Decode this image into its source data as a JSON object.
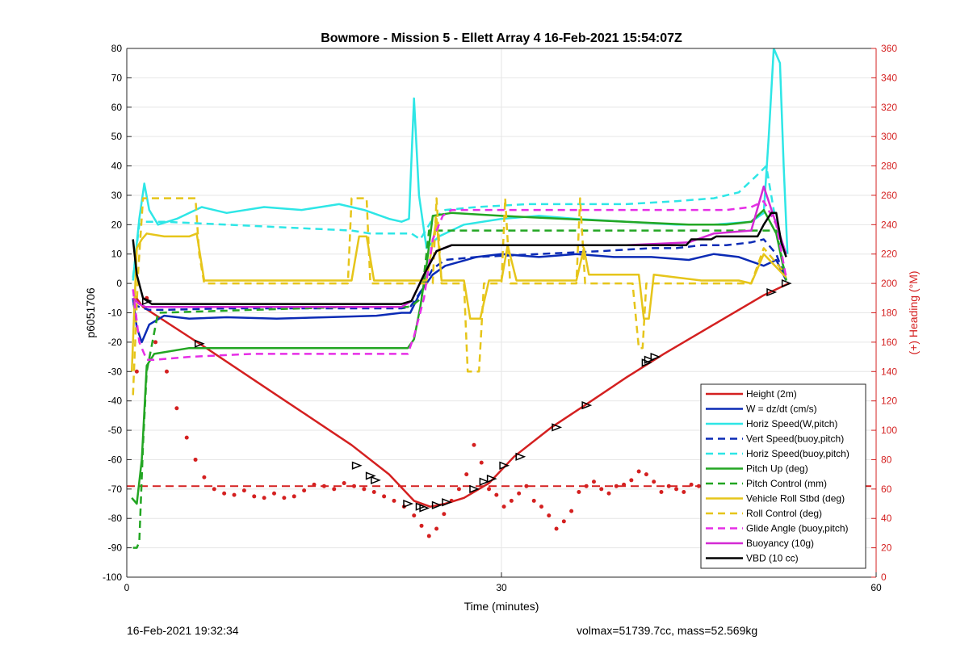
{
  "colors": {
    "height": "#d42020",
    "w": "#0b2bb5",
    "horiz_speed": "#2ee6e6",
    "pitch": "#23a623",
    "roll": "#e6c51a",
    "glide": "#e62ee6",
    "buoyancy": "#d42ad4",
    "vbd": "#000000",
    "right_axis": "#d42020"
  },
  "footer": {
    "left": "16-Feb-2021 19:32:34",
    "right": "volmax=51739.7cc, mass=52.569kg"
  },
  "chart_data": {
    "type": "line",
    "title": "Bowmore - Mission 5 - Ellett Array 4 16-Feb-2021 15:54:07Z",
    "xlabel": "Time (minutes)",
    "ylabel": "p6051706",
    "y2label": "(+) Heading (°M)",
    "xlim": [
      0,
      60
    ],
    "ylim": [
      -100,
      80
    ],
    "y2lim": [
      0,
      360
    ],
    "xticks": [
      0,
      30,
      60
    ],
    "yticks": [
      -100,
      -90,
      -80,
      -70,
      -60,
      -50,
      -40,
      -30,
      -20,
      -10,
      0,
      10,
      20,
      30,
      40,
      50,
      60,
      70,
      80
    ],
    "y2ticks": [
      0,
      20,
      40,
      60,
      80,
      100,
      120,
      140,
      160,
      180,
      200,
      220,
      240,
      260,
      280,
      300,
      320,
      340,
      360
    ],
    "grid": true,
    "legend_position": "bottom-right",
    "series": [
      {
        "name": "Height (2m)",
        "color": "#d42020",
        "style": "solid",
        "x": [
          0.6,
          1.3,
          6,
          12,
          18,
          21,
          23,
          24.3,
          25.5,
          27,
          29,
          31,
          34,
          36.5,
          40,
          43,
          47,
          51,
          53
        ],
        "y": [
          -4,
          -8,
          -21,
          -38,
          -55,
          -65,
          -74,
          -76,
          -75,
          -73,
          -68,
          -59,
          -49,
          -42,
          -32,
          -24,
          -14,
          -4,
          0
        ]
      },
      {
        "name": "W = dz/dt (cm/s)",
        "color": "#0b2bb5",
        "style": "solid",
        "x": [
          0.5,
          0.8,
          1.2,
          1.8,
          3,
          5,
          8,
          12,
          16,
          20,
          22,
          22.7,
          23.5,
          24.5,
          25.5,
          28,
          30,
          33,
          36,
          39,
          42,
          45,
          47,
          49,
          51,
          52,
          52.8
        ],
        "y": [
          -5,
          -15,
          -20,
          -14,
          -11,
          -12,
          -11.5,
          -12,
          -11.5,
          -11,
          -10,
          -10,
          -3,
          3,
          6,
          9,
          10,
          9,
          10,
          9,
          9,
          8,
          10,
          9,
          6,
          8,
          1
        ]
      },
      {
        "name": "Horiz Speed(W,pitch)",
        "color": "#2ee6e6",
        "style": "solid",
        "x": [
          0.5,
          1,
          1.4,
          1.8,
          2.5,
          4,
          6,
          8,
          11,
          14,
          17,
          19,
          21,
          22,
          22.6,
          23,
          23.4,
          24,
          25,
          27,
          30,
          33,
          36,
          40,
          44,
          47,
          50,
          51,
          51.4,
          51.8,
          52.3,
          52.6,
          52.9
        ],
        "y": [
          1,
          22,
          34,
          25,
          20,
          22,
          26,
          24,
          26,
          25,
          27,
          25,
          22,
          21,
          22,
          63,
          30,
          12,
          16,
          20,
          22,
          23,
          22,
          21,
          20,
          20,
          21,
          24,
          50,
          80,
          75,
          40,
          10
        ]
      },
      {
        "name": "Vert Speed(buoy,pitch)",
        "color": "#0b2bb5",
        "style": "dashed",
        "x": [
          0.5,
          1,
          1.8,
          3,
          8,
          16,
          22,
          22.7,
          23.5,
          24.5,
          25.5,
          28,
          33,
          38,
          42,
          44,
          46,
          48,
          50,
          51,
          52,
          52.8
        ],
        "y": [
          -7,
          -8,
          -9,
          -9,
          -8.5,
          -8.5,
          -8.5,
          -8,
          -3,
          5,
          8,
          9,
          10,
          11,
          12,
          12,
          13,
          13,
          14,
          15,
          10,
          1
        ]
      },
      {
        "name": "Horiz Speed(buoy,pitch)",
        "color": "#2ee6e6",
        "style": "dashed",
        "x": [
          0.5,
          1,
          1.5,
          3,
          8,
          13,
          18,
          19.5,
          22,
          22.8,
          23.5,
          24.5,
          25.5,
          28,
          32,
          36,
          40,
          44,
          47,
          49,
          50.5,
          51.2,
          52,
          52.8
        ],
        "y": [
          2,
          20,
          21,
          21,
          20,
          19,
          18,
          17,
          17,
          17,
          15,
          22,
          25,
          26,
          27,
          27,
          27,
          28,
          29,
          31,
          37,
          40,
          20,
          1
        ]
      },
      {
        "name": "Pitch Up (deg)",
        "color": "#23a623",
        "style": "solid",
        "x": [
          0.4,
          0.8,
          1.2,
          1.6,
          2.2,
          5,
          10,
          15,
          20,
          22.5,
          23,
          23.5,
          24,
          24.5,
          26,
          30,
          35,
          40,
          45,
          48,
          50,
          51,
          52,
          52.8
        ],
        "y": [
          -73,
          -75,
          -60,
          -28,
          -24,
          -22,
          -22,
          -22,
          -22,
          -22,
          -19,
          -8,
          6,
          23,
          24,
          23,
          22,
          21,
          20,
          20,
          21,
          25,
          17,
          1
        ]
      },
      {
        "name": "Pitch Control (mm)",
        "color": "#23a623",
        "style": "dashed",
        "x": [
          0.5,
          0.8,
          1.0,
          1.3,
          1.6,
          2.5,
          10,
          18,
          22.5,
          23,
          23.6,
          24.2,
          26,
          35,
          45,
          50,
          51,
          52,
          52.8
        ],
        "y": [
          -90,
          -90,
          -88,
          -55,
          -30,
          -10,
          -9,
          -8,
          -8,
          -7,
          -5,
          18,
          18,
          18,
          18,
          18,
          18,
          18,
          1
        ]
      },
      {
        "name": "Vehicle Roll Stbd (deg)",
        "color": "#e6c51a",
        "style": "solid",
        "x": [
          0.4,
          0.8,
          1.2,
          1.6,
          3,
          5,
          5.6,
          6.2,
          10,
          18,
          18.6,
          19.2,
          19.8,
          22,
          24,
          24.8,
          25.2,
          27,
          27.5,
          28.3,
          29,
          30,
          30.5,
          31.2,
          35,
          36,
          36.6,
          37,
          41,
          41.4,
          41.8,
          42.2,
          46,
          49,
          50,
          51,
          52.8
        ],
        "y": [
          -30,
          12,
          15,
          17,
          16,
          16,
          17,
          1,
          1,
          1,
          16,
          16,
          1,
          1,
          1,
          22,
          1,
          1,
          -12,
          -12,
          1,
          1,
          13,
          1,
          1,
          1,
          12,
          3,
          3,
          -12,
          -12,
          3,
          1,
          1,
          0,
          10,
          2
        ]
      },
      {
        "name": "Roll Control (deg)",
        "color": "#e6c51a",
        "style": "dashed",
        "x": [
          0.5,
          0.9,
          1.3,
          2,
          5.5,
          5.8,
          6.2,
          10,
          17.7,
          18,
          19.2,
          19.5,
          22,
          24.5,
          24.8,
          25.2,
          27,
          27.3,
          28.2,
          28.6,
          30,
          30.3,
          30.7,
          35,
          36,
          36.3,
          36.7,
          40.5,
          41,
          41.3,
          41.6,
          50,
          51,
          52.8
        ],
        "y": [
          -38,
          3,
          29,
          29,
          29,
          10,
          0,
          0,
          0,
          29,
          29,
          0,
          0,
          0,
          29,
          0,
          0,
          -30,
          -30,
          0,
          0,
          29,
          0,
          0,
          0,
          29,
          0,
          0,
          -22,
          -22,
          0,
          0,
          12,
          3
        ]
      },
      {
        "name": "Glide Angle (buoy,pitch)",
        "color": "#e62ee6",
        "style": "dashed",
        "x": [
          0.5,
          1,
          1.6,
          2.2,
          5,
          10,
          15,
          20,
          22,
          22.5,
          23,
          23.8,
          24.5,
          25.3,
          26,
          30,
          35,
          40,
          45,
          48,
          50,
          51,
          52,
          52.8
        ],
        "y": [
          -2,
          -20,
          -26,
          -26,
          -25,
          -24,
          -24,
          -24,
          -24,
          -24,
          -18,
          -5,
          15,
          23,
          25,
          25,
          25,
          25,
          25,
          25,
          26,
          28,
          20,
          2
        ]
      },
      {
        "name": "Buoyancy (10g)",
        "color": "#d42ad4",
        "style": "solid",
        "x": [
          0.5,
          1,
          1.5,
          3,
          22,
          22.8,
          23.8,
          24.8,
          26,
          40,
          45,
          47,
          50,
          51,
          52.8
        ],
        "y": [
          -5,
          -7,
          -8,
          -8,
          -8,
          -6,
          3,
          11,
          13,
          13,
          14,
          17,
          18,
          33,
          10
        ]
      },
      {
        "name": "VBD (10 cc)",
        "color": "#000000",
        "style": "solid",
        "x": [
          0.5,
          0.8,
          1.3,
          2,
          22,
          22.8,
          23.8,
          24.8,
          26,
          30,
          35,
          40,
          44.8,
          45.2,
          46.8,
          47.2,
          50.5,
          51,
          51.6,
          52,
          52.4,
          52.8
        ],
        "y": [
          15,
          3,
          -5,
          -7,
          -7,
          -6,
          3,
          11,
          13,
          13,
          13,
          13,
          13,
          15,
          15,
          16,
          16,
          20,
          24,
          24,
          14,
          9
        ]
      }
    ],
    "reference_line": {
      "color": "#d42020",
      "style": "dashed",
      "y2": 62
    },
    "heading_points": {
      "color": "#d42020",
      "x": [
        0.8,
        1.6,
        2.3,
        3.2,
        4.0,
        4.8,
        5.5,
        6.2,
        7.0,
        7.8,
        8.6,
        9.4,
        10.2,
        11.0,
        11.8,
        12.6,
        13.4,
        14.2,
        15.0,
        15.8,
        16.6,
        17.4,
        18.2,
        19.0,
        19.8,
        20.6,
        21.4,
        22.2,
        23.0,
        23.6,
        24.2,
        24.8,
        25.4,
        26.0,
        26.6,
        27.2,
        27.8,
        28.4,
        29.0,
        29.6,
        30.2,
        30.8,
        31.4,
        32.0,
        32.6,
        33.2,
        33.8,
        34.4,
        35.0,
        35.6,
        36.2,
        36.8,
        37.4,
        38.0,
        38.6,
        39.2,
        39.8,
        40.4,
        41.0,
        41.6,
        42.2,
        42.8,
        43.4,
        44.0,
        44.6,
        45.2,
        45.8,
        46.4,
        47.0,
        47.6,
        48.2,
        48.8,
        49.4,
        50.0,
        50.6,
        51.2,
        51.8
      ],
      "y2": [
        140,
        190,
        160,
        140,
        115,
        95,
        80,
        68,
        60,
        57,
        56,
        59,
        55,
        54,
        57,
        54,
        55,
        59,
        63,
        62,
        60,
        64,
        62,
        60,
        58,
        55,
        52,
        48,
        42,
        35,
        28,
        33,
        43,
        52,
        60,
        70,
        90,
        78,
        60,
        56,
        48,
        52,
        57,
        62,
        52,
        48,
        42,
        33,
        38,
        45,
        58,
        62,
        65,
        60,
        57,
        62,
        63,
        66,
        72,
        70,
        65,
        58,
        62,
        60,
        58,
        63,
        62,
        70,
        75,
        65,
        68,
        60,
        58,
        62,
        70,
        65,
        40
      ]
    },
    "markers": {
      "shape": "triangle",
      "color": "#000000",
      "x": [
        1.6,
        5.8,
        18.4,
        19.5,
        19.9,
        22.5,
        23.5,
        23.8,
        24.8,
        25.6,
        27.8,
        28.6,
        29.2,
        30.2,
        31.5,
        34.4,
        36.8,
        41.6,
        41.8,
        42.3,
        51.6,
        52.8
      ],
      "y": [
        -6,
        -20.5,
        -62,
        -65.5,
        -67,
        -75,
        -76,
        -76.5,
        -75.5,
        -74.5,
        -70,
        -67.5,
        -66.5,
        -62,
        -59,
        -49,
        -41.5,
        -27,
        -26,
        -25,
        -3,
        0
      ]
    }
  }
}
